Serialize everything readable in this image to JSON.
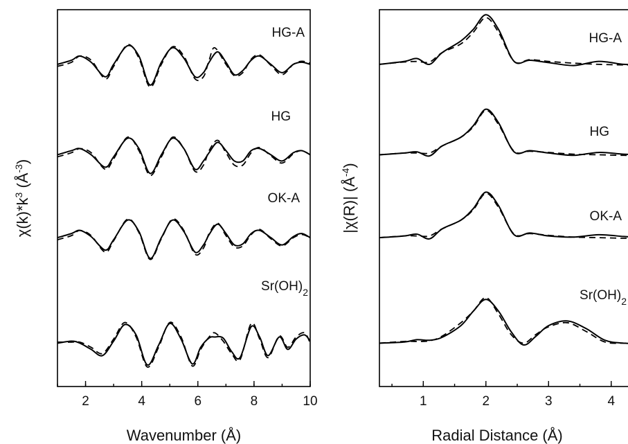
{
  "chart_data": [
    {
      "type": "line",
      "xlabel": "Wavenumber (Å)",
      "ylabel_parts": [
        "χ(k)*k",
        "3",
        " (Å",
        "-3",
        ")"
      ],
      "xlim": [
        1,
        10
      ],
      "xticks": [
        2,
        4,
        6,
        8,
        10
      ],
      "yticks_shown": false,
      "line_styles": [
        "solid",
        "dashed"
      ],
      "series": [
        {
          "label_main": "HG-A",
          "label_sub": "",
          "baseline": 0.855,
          "amp": 0.055,
          "solid": {
            "x": [
              1,
              1.5,
              1.8,
              2.2,
              2.7,
              3.0,
              3.5,
              3.9,
              4.3,
              4.7,
              5.1,
              5.5,
              5.9,
              6.2,
              6.4,
              6.7,
              7.0,
              7.3,
              7.6,
              7.9,
              8.2,
              8.6,
              9.0,
              9.4,
              9.7,
              10
            ],
            "y": [
              0.0,
              0.2,
              0.4,
              0.1,
              -0.6,
              0.0,
              0.9,
              0.4,
              -1.0,
              0.1,
              0.8,
              0.3,
              -0.6,
              -0.4,
              0.1,
              0.6,
              0.1,
              -0.5,
              -0.3,
              0.2,
              0.4,
              0.0,
              -0.4,
              0.0,
              0.1,
              0.0
            ]
          },
          "dashed": {
            "x": [
              1,
              1.5,
              1.8,
              2.2,
              2.7,
              3.0,
              3.5,
              3.9,
              4.3,
              4.7,
              5.1,
              5.5,
              5.9,
              6.2,
              6.4,
              6.6,
              7.0,
              7.3,
              7.6,
              7.9,
              8.2,
              8.6,
              9.0,
              9.4,
              9.7,
              10
            ],
            "y": [
              -0.1,
              0.1,
              0.4,
              0.2,
              -0.7,
              -0.1,
              0.95,
              0.3,
              -1.1,
              0.0,
              0.85,
              0.4,
              -0.7,
              -0.6,
              0.2,
              0.8,
              0.0,
              -0.55,
              -0.4,
              0.25,
              0.45,
              -0.05,
              -0.5,
              0.0,
              0.15,
              0.05
            ]
          }
        },
        {
          "label_main": "HG",
          "label_sub": "",
          "baseline": 0.615,
          "amp": 0.055,
          "solid": {
            "x": [
              1,
              1.5,
              1.8,
              2.2,
              2.7,
              3.0,
              3.5,
              3.9,
              4.3,
              4.7,
              5.1,
              5.5,
              5.9,
              6.2,
              6.4,
              6.7,
              7.0,
              7.3,
              7.6,
              7.9,
              8.2,
              8.6,
              9.0,
              9.4,
              9.7,
              10
            ],
            "y": [
              0.0,
              0.2,
              0.3,
              0.0,
              -0.6,
              -0.1,
              0.8,
              0.3,
              -0.9,
              0.0,
              0.8,
              0.3,
              -0.7,
              -0.3,
              0.1,
              0.6,
              0.2,
              -0.3,
              -0.3,
              0.2,
              0.3,
              0.0,
              -0.3,
              0.1,
              0.2,
              0.0
            ]
          },
          "dashed": {
            "x": [
              1,
              1.5,
              1.8,
              2.2,
              2.7,
              3.0,
              3.5,
              3.9,
              4.3,
              4.7,
              5.1,
              5.5,
              5.9,
              6.2,
              6.4,
              6.7,
              7.0,
              7.3,
              7.6,
              7.9,
              8.2,
              8.6,
              9.0,
              9.4,
              9.7,
              10
            ],
            "y": [
              -0.1,
              0.1,
              0.3,
              0.1,
              -0.7,
              -0.2,
              0.85,
              0.2,
              -1.0,
              -0.1,
              0.85,
              0.3,
              -0.8,
              -0.5,
              0.2,
              0.7,
              0.1,
              -0.5,
              -0.5,
              0.1,
              0.35,
              -0.05,
              -0.4,
              0.05,
              0.2,
              0.0
            ]
          }
        },
        {
          "label_main": "OK-A",
          "label_sub": "",
          "baseline": 0.395,
          "amp": 0.055,
          "solid": {
            "x": [
              1,
              1.5,
              1.8,
              2.2,
              2.7,
              3.0,
              3.5,
              3.9,
              4.3,
              4.7,
              5.1,
              5.5,
              5.9,
              6.2,
              6.4,
              6.7,
              7.0,
              7.3,
              7.6,
              7.9,
              8.2,
              8.6,
              9.0,
              9.4,
              9.7,
              10
            ],
            "y": [
              0.0,
              0.2,
              0.35,
              0.05,
              -0.6,
              -0.1,
              0.85,
              0.3,
              -1.0,
              0.0,
              0.85,
              0.3,
              -0.7,
              -0.35,
              0.15,
              0.65,
              0.2,
              -0.35,
              -0.3,
              0.2,
              0.35,
              0.0,
              -0.35,
              0.05,
              0.2,
              0.0
            ]
          },
          "dashed": {
            "x": [
              1,
              1.5,
              1.8,
              2.2,
              2.7,
              3.0,
              3.5,
              3.9,
              4.3,
              4.7,
              5.1,
              5.5,
              5.9,
              6.2,
              6.4,
              6.7,
              7.0,
              7.3,
              7.6,
              7.9,
              8.2,
              8.6,
              9.0,
              9.4,
              9.7,
              10
            ],
            "y": [
              -0.1,
              0.1,
              0.35,
              0.1,
              -0.7,
              -0.15,
              0.9,
              0.25,
              -1.05,
              -0.05,
              0.9,
              0.35,
              -0.8,
              -0.5,
              0.2,
              0.7,
              0.1,
              -0.45,
              -0.4,
              0.15,
              0.4,
              -0.05,
              -0.4,
              0.0,
              0.15,
              0.0
            ]
          }
        },
        {
          "label_main": "Sr(OH)",
          "label_sub": "2",
          "baseline": 0.115,
          "amp": 0.055,
          "solid": {
            "x": [
              1,
              1.5,
              1.8,
              2.2,
              2.6,
              3.0,
              3.4,
              3.8,
              4.2,
              4.6,
              5.0,
              5.4,
              5.8,
              6.1,
              6.4,
              6.6,
              6.9,
              7.2,
              7.5,
              7.9,
              8.2,
              8.5,
              8.9,
              9.2,
              9.5,
              9.8,
              10
            ],
            "y": [
              0.0,
              0.1,
              0.0,
              -0.3,
              -0.6,
              0.1,
              0.9,
              0.4,
              -1.05,
              -0.1,
              0.95,
              0.2,
              -1.0,
              -0.2,
              0.25,
              0.3,
              0.25,
              -0.4,
              -0.7,
              0.8,
              0.3,
              -0.6,
              0.3,
              -0.3,
              0.2,
              0.4,
              0.1
            ]
          },
          "dashed": {
            "x": [
              1,
              1.5,
              1.8,
              2.2,
              2.6,
              3.0,
              3.4,
              3.8,
              4.2,
              4.6,
              5.0,
              5.4,
              5.8,
              6.1,
              6.4,
              6.6,
              6.9,
              7.2,
              7.5,
              7.9,
              8.2,
              8.5,
              8.9,
              9.2,
              9.5,
              9.8,
              10
            ],
            "y": [
              0.05,
              0.05,
              0.05,
              -0.2,
              -0.5,
              0.2,
              1.0,
              0.3,
              -1.15,
              -0.2,
              1.0,
              0.3,
              -1.1,
              -0.3,
              0.3,
              0.5,
              0.1,
              -0.5,
              -0.8,
              0.95,
              0.2,
              -0.7,
              0.35,
              -0.2,
              0.3,
              0.5,
              0.0
            ]
          }
        }
      ]
    },
    {
      "type": "line",
      "xlabel": "Radial Distance (Å)",
      "ylabel_parts": [
        "|χ(R)| (Å",
        "-4",
        ")"
      ],
      "xlim": [
        0.3,
        4.5
      ],
      "xticks": [
        1,
        2,
        3,
        4
      ],
      "yticks_shown": false,
      "line_styles": [
        "solid",
        "dashed"
      ],
      "series": [
        {
          "label_main": "HG-A",
          "label_sub": "",
          "baseline": 0.855,
          "amp": 0.155,
          "solid": {
            "x": [
              0.3,
              0.7,
              0.9,
              1.1,
              1.3,
              1.6,
              1.8,
              2.0,
              2.2,
              2.45,
              2.7,
              3.0,
              3.4,
              3.8,
              4.2,
              4.5
            ],
            "y": [
              0.0,
              0.05,
              0.1,
              0.0,
              0.2,
              0.4,
              0.6,
              0.85,
              0.6,
              0.05,
              0.07,
              0.03,
              -0.02,
              0.05,
              0.0,
              0.0
            ]
          },
          "dashed": {
            "x": [
              0.3,
              0.7,
              0.9,
              1.1,
              1.3,
              1.6,
              1.8,
              2.0,
              2.2,
              2.45,
              2.7,
              3.0,
              3.4,
              3.8,
              4.2,
              4.5
            ],
            "y": [
              0.0,
              0.04,
              0.05,
              0.04,
              0.2,
              0.35,
              0.55,
              0.8,
              0.55,
              0.05,
              0.08,
              0.05,
              0.02,
              0.0,
              -0.01,
              -0.01
            ]
          }
        },
        {
          "label_main": "HG",
          "label_sub": "",
          "baseline": 0.615,
          "amp": 0.155,
          "solid": {
            "x": [
              0.3,
              0.7,
              0.9,
              1.1,
              1.3,
              1.6,
              1.8,
              2.0,
              2.2,
              2.45,
              2.7,
              3.0,
              3.4,
              3.8,
              4.2,
              4.5
            ],
            "y": [
              0.0,
              0.03,
              0.05,
              -0.02,
              0.15,
              0.3,
              0.5,
              0.78,
              0.55,
              0.05,
              0.07,
              0.03,
              -0.01,
              0.04,
              0.01,
              0.0
            ]
          },
          "dashed": {
            "x": [
              0.3,
              0.7,
              0.9,
              1.1,
              1.3,
              1.6,
              1.8,
              2.0,
              2.2,
              2.45,
              2.7,
              3.0,
              3.4,
              3.8,
              4.2,
              4.5
            ],
            "y": [
              0.0,
              0.03,
              0.03,
              0.03,
              0.15,
              0.3,
              0.48,
              0.76,
              0.52,
              0.06,
              0.06,
              0.04,
              0.01,
              0.0,
              -0.01,
              -0.01
            ]
          }
        },
        {
          "label_main": "OK-A",
          "label_sub": "",
          "baseline": 0.395,
          "amp": 0.155,
          "solid": {
            "x": [
              0.3,
              0.7,
              0.9,
              1.1,
              1.3,
              1.6,
              1.8,
              2.0,
              2.2,
              2.45,
              2.7,
              3.0,
              3.4,
              3.8,
              4.2,
              4.5
            ],
            "y": [
              0.0,
              0.03,
              0.06,
              -0.02,
              0.15,
              0.3,
              0.5,
              0.78,
              0.55,
              0.05,
              0.08,
              0.03,
              0.01,
              0.05,
              0.02,
              0.0
            ]
          },
          "dashed": {
            "x": [
              0.3,
              0.7,
              0.9,
              1.1,
              1.3,
              1.6,
              1.8,
              2.0,
              2.2,
              2.45,
              2.7,
              3.0,
              3.4,
              3.8,
              4.2,
              4.5
            ],
            "y": [
              0.0,
              0.03,
              0.03,
              0.03,
              0.15,
              0.3,
              0.48,
              0.76,
              0.52,
              0.06,
              0.07,
              0.04,
              0.01,
              0.0,
              -0.01,
              -0.01
            ]
          }
        },
        {
          "label_main": "Sr(OH)",
          "label_sub": "2",
          "baseline": 0.115,
          "amp": 0.155,
          "solid": {
            "x": [
              0.3,
              0.7,
              0.9,
              1.1,
              1.3,
              1.6,
              1.8,
              2.0,
              2.2,
              2.4,
              2.6,
              2.8,
              3.0,
              3.3,
              3.6,
              3.9,
              4.2,
              4.5
            ],
            "y": [
              0.0,
              0.02,
              0.06,
              0.05,
              0.1,
              0.3,
              0.55,
              0.75,
              0.55,
              0.2,
              -0.03,
              0.12,
              0.3,
              0.38,
              0.25,
              0.05,
              0.0,
              0.0
            ]
          },
          "dashed": {
            "x": [
              0.3,
              0.7,
              0.9,
              1.1,
              1.3,
              1.6,
              1.8,
              2.0,
              2.2,
              2.4,
              2.6,
              2.8,
              3.0,
              3.3,
              3.6,
              3.9,
              4.2,
              4.5
            ],
            "y": [
              0.0,
              0.03,
              0.03,
              0.04,
              0.12,
              0.35,
              0.55,
              0.78,
              0.5,
              0.15,
              0.0,
              0.15,
              0.28,
              0.35,
              0.2,
              0.02,
              0.0,
              0.0
            ]
          }
        }
      ]
    }
  ]
}
